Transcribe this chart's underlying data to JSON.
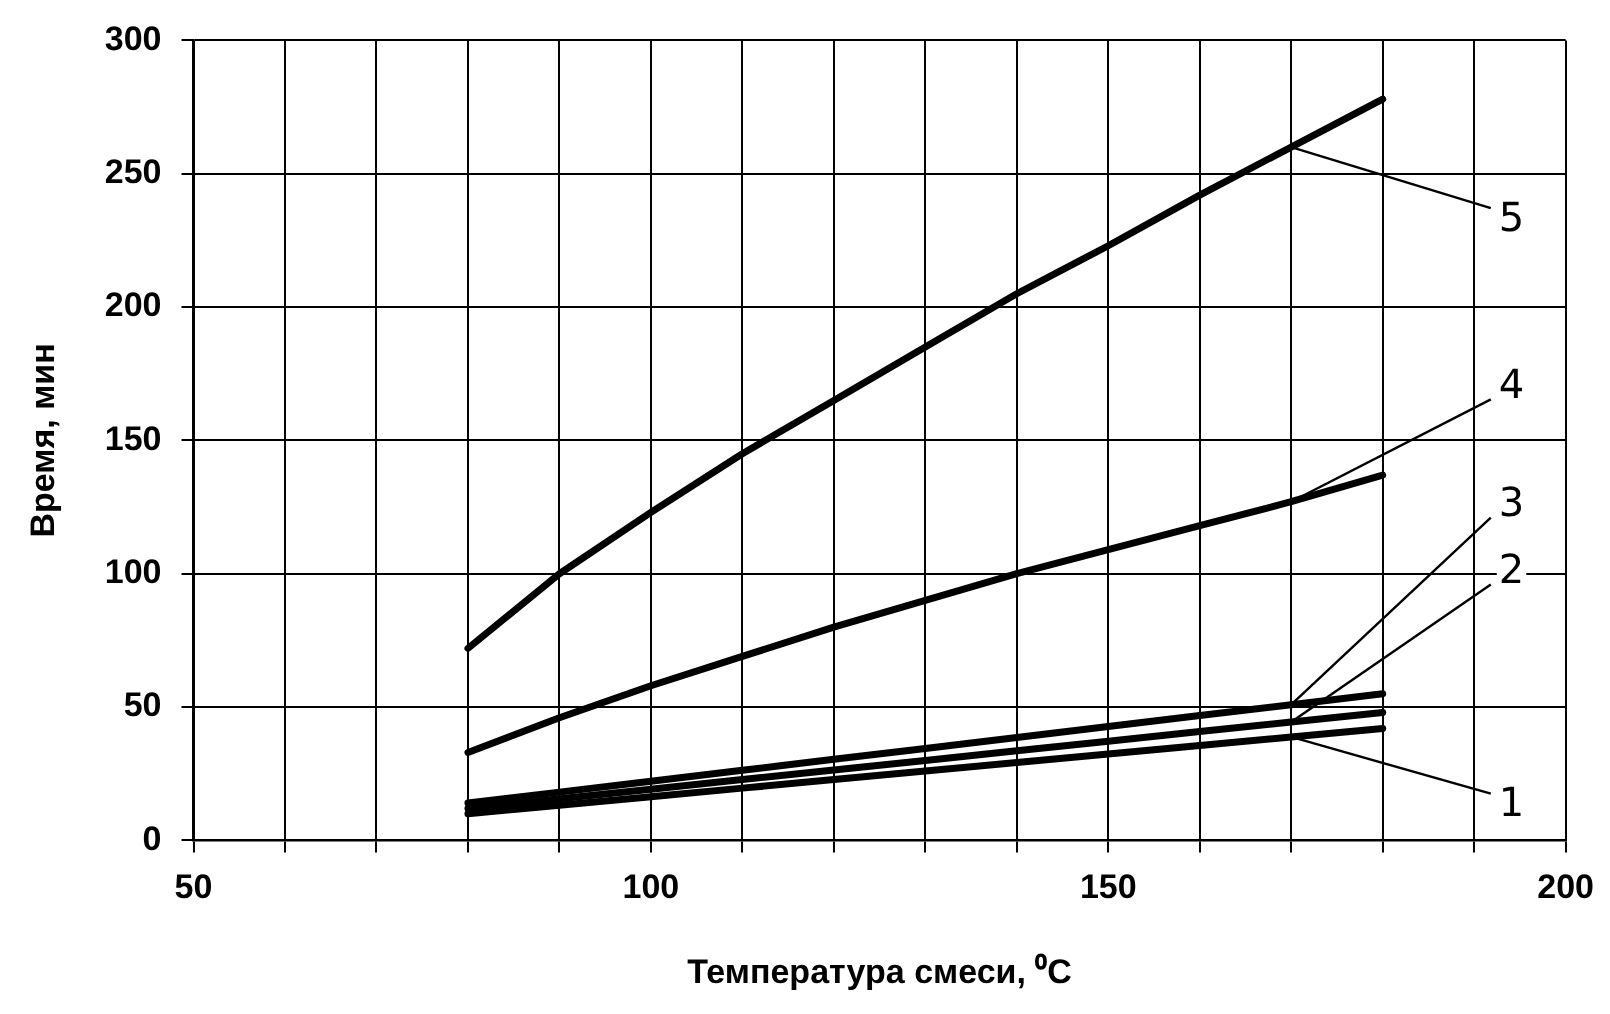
{
  "chart_data": {
    "type": "line",
    "xlabel": "Температура смеси, ⁰C",
    "ylabel": "Время, мин",
    "x": [
      80,
      90,
      100,
      110,
      120,
      130,
      140,
      150,
      160,
      170,
      180
    ],
    "series": [
      {
        "name": "1",
        "color": "#000000",
        "values": [
          10,
          13.2,
          16.4,
          19.6,
          22.8,
          26,
          29.2,
          32.4,
          35.6,
          38.8,
          42
        ]
      },
      {
        "name": "2",
        "color": "#000000",
        "values": [
          12,
          15.6,
          19.2,
          22.8,
          26.4,
          30,
          33.6,
          37.2,
          40.8,
          44.4,
          48
        ]
      },
      {
        "name": "3",
        "color": "#000000",
        "values": [
          14,
          18.1,
          22.2,
          26.3,
          30.4,
          34.5,
          38.6,
          42.7,
          46.8,
          50.9,
          55
        ]
      },
      {
        "name": "4",
        "color": "#000000",
        "values": [
          33,
          46,
          58,
          69,
          80,
          90,
          100,
          109,
          118,
          127,
          137
        ]
      },
      {
        "name": "5",
        "color": "#000000",
        "values": [
          72,
          100,
          123,
          145,
          165,
          185,
          205,
          223,
          242,
          260,
          278
        ]
      }
    ],
    "xlim": [
      50,
      200
    ],
    "xticks": [
      50,
      {
        "value": 60,
        "label": null
      },
      {
        "value": 70,
        "label": null
      },
      {
        "value": 80,
        "label": null
      },
      {
        "value": 90,
        "label": null
      },
      100,
      {
        "value": 110,
        "label": null
      },
      {
        "value": 120,
        "label": null
      },
      {
        "value": 130,
        "label": null
      },
      {
        "value": 140,
        "label": null
      },
      150,
      {
        "value": 160,
        "label": null
      },
      {
        "value": 170,
        "label": null
      },
      {
        "value": 180,
        "label": null
      },
      {
        "value": 190,
        "label": null
      },
      200
    ],
    "ylim": [
      0,
      300
    ],
    "yticks": [
      0,
      50,
      100,
      150,
      200,
      250,
      300
    ],
    "grid": true,
    "legend": false,
    "marker": "none",
    "line_style": "solid"
  }
}
